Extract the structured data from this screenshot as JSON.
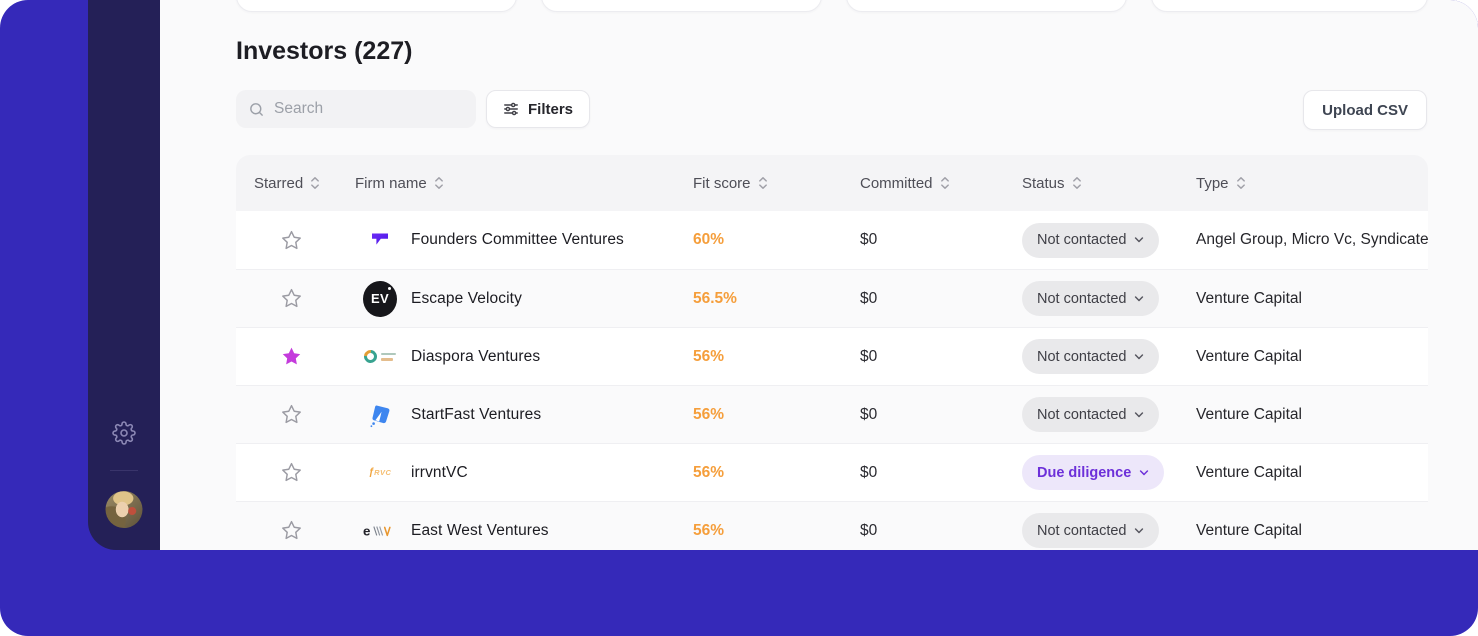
{
  "frame": {
    "outer_blue": "#3529B9",
    "sidebar_navy": "#242057"
  },
  "sidebar": {
    "icons": [
      "settings-gear",
      "user-avatar"
    ]
  },
  "tabs": {
    "count": 4
  },
  "header": {
    "title": "Investors (227)"
  },
  "toolbar": {
    "search_placeholder": "Search",
    "filters_label": "Filters",
    "upload_label": "Upload CSV"
  },
  "table": {
    "columns": [
      {
        "key": "starred",
        "label": "Starred",
        "sortable": true
      },
      {
        "key": "firm",
        "label": "Firm name",
        "sortable": true
      },
      {
        "key": "fit",
        "label": "Fit score",
        "sortable": true
      },
      {
        "key": "committed",
        "label": "Committed",
        "sortable": true
      },
      {
        "key": "status",
        "label": "Status",
        "sortable": true
      },
      {
        "key": "type",
        "label": "Type",
        "sortable": true
      }
    ],
    "rows": [
      {
        "starred": false,
        "logo": "pennant-flag",
        "firm": "Founders Committee Ventures",
        "fit": "60%",
        "committed": "$0",
        "status": "Not contacted",
        "status_variant": "gray",
        "type": "Angel Group, Micro Vc, Syndicate"
      },
      {
        "starred": false,
        "logo": "ev-circle",
        "firm": "Escape Velocity",
        "fit": "56.5%",
        "committed": "$0",
        "status": "Not contacted",
        "status_variant": "gray",
        "type": "Venture Capital"
      },
      {
        "starred": true,
        "logo": "diaspora-donut",
        "firm": "Diaspora Ventures",
        "fit": "56%",
        "committed": "$0",
        "status": "Not contacted",
        "status_variant": "gray",
        "type": "Venture Capital"
      },
      {
        "starred": false,
        "logo": "startfast-rocket",
        "firm": "StartFast Ventures",
        "fit": "56%",
        "committed": "$0",
        "status": "Not contacted",
        "status_variant": "gray",
        "type": "Venture Capital"
      },
      {
        "starred": false,
        "logo": "irrvnt-wordmark",
        "firm": "irrvntVC",
        "fit": "56%",
        "committed": "$0",
        "status": "Due diligence",
        "status_variant": "purple",
        "type": "Venture Capital"
      },
      {
        "starred": false,
        "logo": "eastwest-wordmark",
        "firm": "East West Ventures",
        "fit": "56%",
        "committed": "$0",
        "status": "Not contacted",
        "status_variant": "gray",
        "type": "Venture Capital"
      }
    ]
  }
}
